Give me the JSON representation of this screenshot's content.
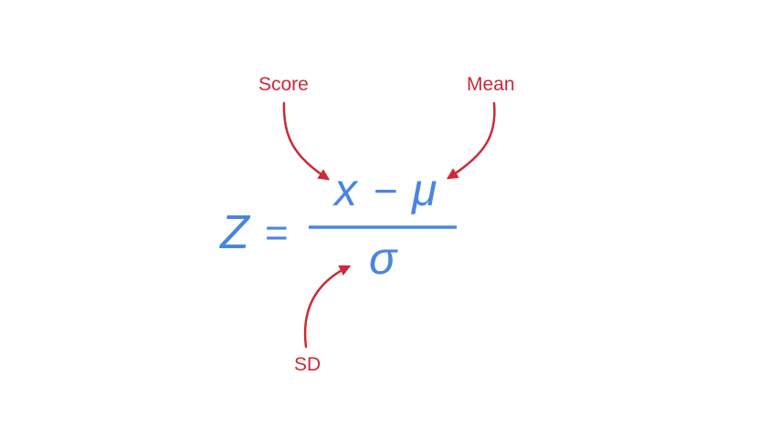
{
  "colors": {
    "formula": "#4a86e0",
    "annotation": "#cc2a36",
    "background": "#ffffff"
  },
  "formula": {
    "lhs": "Z",
    "equals": "=",
    "numerator_x": "x",
    "numerator_minus": "−",
    "numerator_mu": "μ",
    "denominator": "σ"
  },
  "callouts": {
    "score": "Score",
    "mean": "Mean",
    "sd": "SD"
  }
}
